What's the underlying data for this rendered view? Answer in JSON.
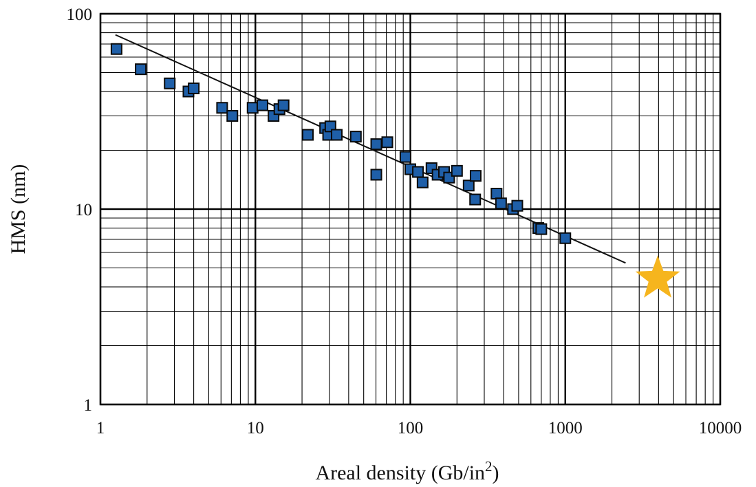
{
  "chart_data": {
    "type": "scatter",
    "title": "",
    "xlabel": "Areal density (Gb/in",
    "xlabel_sup": "2",
    "xlabel_close": ")",
    "ylabel": "HMS (nm)",
    "xscale": "log",
    "yscale": "log",
    "xlim": [
      1,
      10000
    ],
    "ylim": [
      1,
      100
    ],
    "grid": true,
    "legend": "none",
    "x_ticks": [
      {
        "value": 1,
        "label": "1"
      },
      {
        "value": 10,
        "label": "10"
      },
      {
        "value": 100,
        "label": "100"
      },
      {
        "value": 1000,
        "label": "1000"
      },
      {
        "value": 10000,
        "label": "10000"
      }
    ],
    "y_ticks": [
      {
        "value": 1,
        "label": "1"
      },
      {
        "value": 10,
        "label": "10"
      },
      {
        "value": 100,
        "label": "100"
      }
    ],
    "series": [
      {
        "marker": "square",
        "color": "#1f5fa8",
        "points": [
          {
            "x": 1.27,
            "y": 66
          },
          {
            "x": 1.82,
            "y": 52
          },
          {
            "x": 2.8,
            "y": 44
          },
          {
            "x": 3.7,
            "y": 40
          },
          {
            "x": 4.0,
            "y": 41.5
          },
          {
            "x": 6.1,
            "y": 33
          },
          {
            "x": 7.1,
            "y": 30
          },
          {
            "x": 9.6,
            "y": 33
          },
          {
            "x": 11.1,
            "y": 34
          },
          {
            "x": 13.1,
            "y": 30
          },
          {
            "x": 14.3,
            "y": 32.5
          },
          {
            "x": 15.2,
            "y": 34
          },
          {
            "x": 21.8,
            "y": 24
          },
          {
            "x": 28.2,
            "y": 26
          },
          {
            "x": 29.5,
            "y": 24
          },
          {
            "x": 30.5,
            "y": 26.5
          },
          {
            "x": 33.5,
            "y": 24
          },
          {
            "x": 44.5,
            "y": 23.5
          },
          {
            "x": 60.3,
            "y": 21.5
          },
          {
            "x": 60.3,
            "y": 15
          },
          {
            "x": 71,
            "y": 22
          },
          {
            "x": 93,
            "y": 18.5
          },
          {
            "x": 100,
            "y": 16
          },
          {
            "x": 112,
            "y": 15.5
          },
          {
            "x": 120,
            "y": 13.7
          },
          {
            "x": 137,
            "y": 16.2
          },
          {
            "x": 150,
            "y": 15
          },
          {
            "x": 165,
            "y": 15.5
          },
          {
            "x": 178,
            "y": 14.5
          },
          {
            "x": 200,
            "y": 15.7
          },
          {
            "x": 238,
            "y": 13.2
          },
          {
            "x": 262,
            "y": 11.2
          },
          {
            "x": 264,
            "y": 14.8
          },
          {
            "x": 360,
            "y": 12
          },
          {
            "x": 385,
            "y": 10.7
          },
          {
            "x": 460,
            "y": 10
          },
          {
            "x": 490,
            "y": 10.4
          },
          {
            "x": 670,
            "y": 8
          },
          {
            "x": 700,
            "y": 7.9
          },
          {
            "x": 1000,
            "y": 7.1
          }
        ]
      }
    ],
    "trendline": {
      "x": [
        1.25,
        2450
      ],
      "y": [
        78,
        5.3
      ],
      "color": "#111111"
    },
    "highlight": {
      "marker": "star",
      "x": 3950,
      "y": 4.4,
      "color": "#f6b51e"
    }
  }
}
